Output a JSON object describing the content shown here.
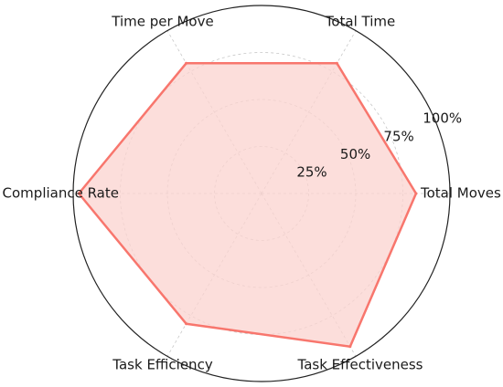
{
  "chart_data": {
    "type": "radar",
    "categories": [
      "Total Moves",
      "Total Time",
      "Time per Move",
      "Compliance Rate",
      "Task Efficiency",
      "Task Effectiveness"
    ],
    "series": [
      {
        "values": [
          82,
          80,
          80,
          97,
          80,
          94
        ]
      }
    ],
    "radial_ticks": [
      25,
      50,
      75,
      100
    ],
    "radial_tick_labels": [
      "25%",
      "50%",
      "75%",
      "100%"
    ],
    "rlim": [
      0,
      100
    ],
    "grid": true,
    "colors": {
      "line": "#f8766d",
      "fill": "#fbd3cf"
    }
  }
}
